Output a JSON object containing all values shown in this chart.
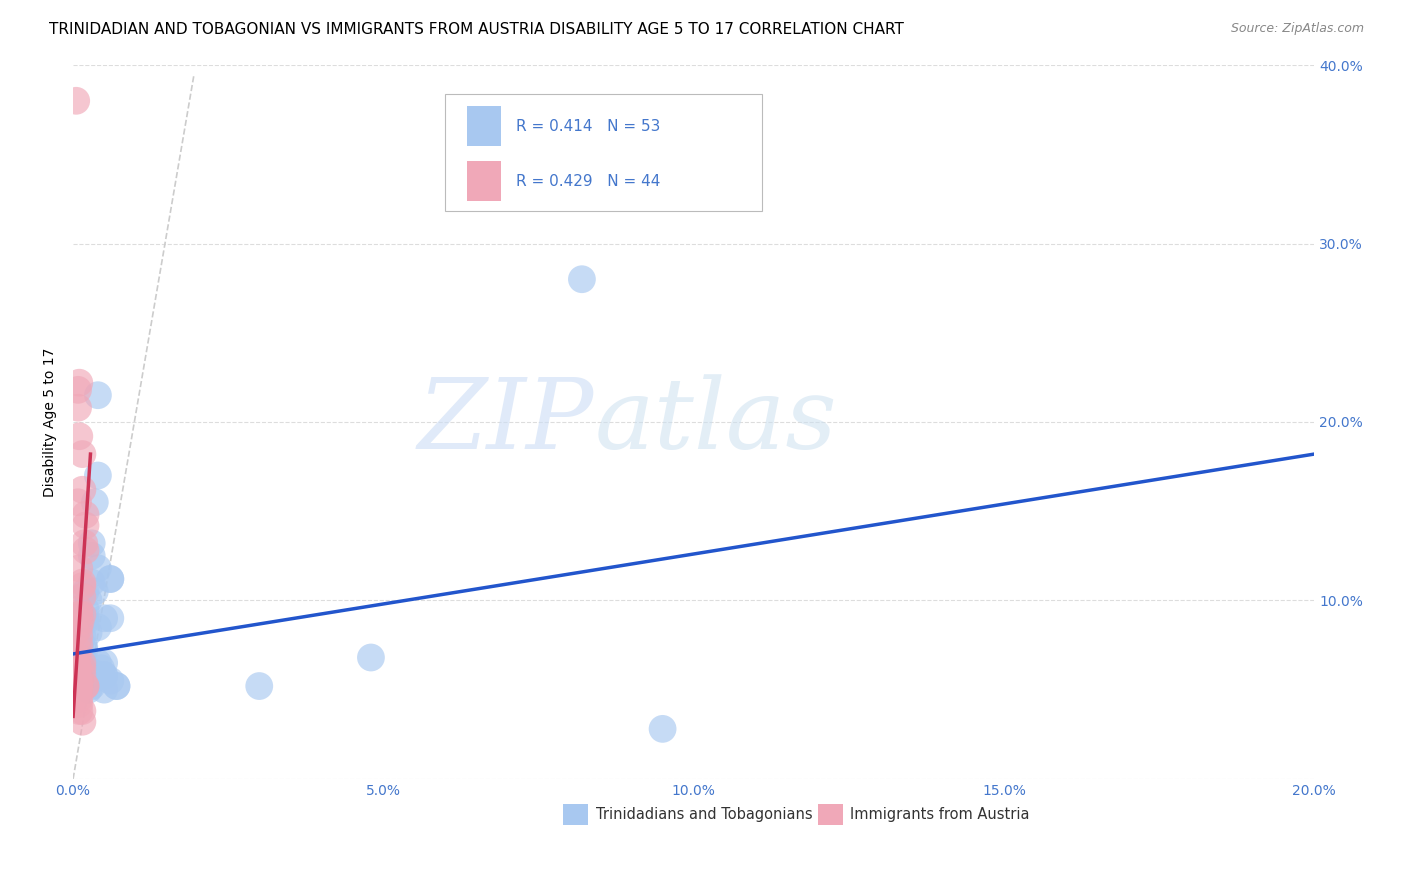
{
  "title": "TRINIDADIAN AND TOBAGONIAN VS IMMIGRANTS FROM AUSTRIA DISABILITY AGE 5 TO 17 CORRELATION CHART",
  "source": "Source: ZipAtlas.com",
  "ylabel": "Disability Age 5 to 17",
  "xlim": [
    0,
    0.2
  ],
  "ylim": [
    0,
    0.4
  ],
  "xticks": [
    0.0,
    0.05,
    0.1,
    0.15,
    0.2
  ],
  "xtick_labels": [
    "0.0%",
    "5.0%",
    "10.0%",
    "15.0%",
    "20.0%"
  ],
  "yticks": [
    0.0,
    0.1,
    0.2,
    0.3,
    0.4
  ],
  "ytick_labels_left": [
    "",
    "",
    "",
    "",
    ""
  ],
  "ytick_labels_right": [
    "",
    "10.0%",
    "20.0%",
    "30.0%",
    "40.0%"
  ],
  "legend_labels": [
    "Trinidadians and Tobagonians",
    "Immigrants from Austria"
  ],
  "blue_R": 0.414,
  "blue_N": 53,
  "pink_R": 0.429,
  "pink_N": 44,
  "blue_color": "#a8c8f0",
  "blue_line_color": "#2255cc",
  "pink_color": "#f0a8b8",
  "pink_line_color": "#cc3355",
  "scatter_alpha": 0.65,
  "scatter_size": 400,
  "blue_scatter_x": [
    0.0005,
    0.001,
    0.0008,
    0.0012,
    0.0015,
    0.0008,
    0.001,
    0.0015,
    0.0012,
    0.0018,
    0.002,
    0.0015,
    0.001,
    0.002,
    0.0018,
    0.002,
    0.0025,
    0.003,
    0.002,
    0.003,
    0.0035,
    0.003,
    0.004,
    0.0025,
    0.004,
    0.0035,
    0.001,
    0.0015,
    0.002,
    0.003,
    0.004,
    0.003,
    0.0045,
    0.0025,
    0.003,
    0.005,
    0.004,
    0.006,
    0.004,
    0.005,
    0.007,
    0.005,
    0.006,
    0.007,
    0.005,
    0.004,
    0.006,
    0.006,
    0.005,
    0.03,
    0.048,
    0.082,
    0.095
  ],
  "blue_scatter_y": [
    0.075,
    0.072,
    0.082,
    0.07,
    0.068,
    0.078,
    0.085,
    0.08,
    0.076,
    0.074,
    0.088,
    0.065,
    0.07,
    0.09,
    0.072,
    0.095,
    0.1,
    0.11,
    0.105,
    0.132,
    0.155,
    0.125,
    0.17,
    0.082,
    0.118,
    0.105,
    0.058,
    0.052,
    0.055,
    0.06,
    0.065,
    0.052,
    0.062,
    0.05,
    0.055,
    0.09,
    0.085,
    0.09,
    0.058,
    0.065,
    0.052,
    0.058,
    0.055,
    0.052,
    0.05,
    0.215,
    0.112,
    0.112,
    0.058,
    0.052,
    0.068,
    0.28,
    0.028
  ],
  "pink_scatter_x": [
    0.0005,
    0.0008,
    0.001,
    0.001,
    0.0012,
    0.0015,
    0.001,
    0.0015,
    0.0008,
    0.001,
    0.0015,
    0.001,
    0.0008,
    0.002,
    0.0015,
    0.002,
    0.0018,
    0.001,
    0.0008,
    0.0015,
    0.002,
    0.001,
    0.0015,
    0.0008,
    0.001,
    0.0015,
    0.002,
    0.0015,
    0.001,
    0.002,
    0.0015,
    0.001,
    0.0008,
    0.001,
    0.0015,
    0.001,
    0.0008,
    0.001,
    0.0015,
    0.0005,
    0.001,
    0.0008,
    0.0008,
    0.001
  ],
  "pink_scatter_y": [
    0.082,
    0.072,
    0.085,
    0.08,
    0.088,
    0.092,
    0.075,
    0.108,
    0.062,
    0.118,
    0.11,
    0.095,
    0.068,
    0.128,
    0.102,
    0.142,
    0.132,
    0.092,
    0.155,
    0.162,
    0.148,
    0.052,
    0.058,
    0.055,
    0.05,
    0.065,
    0.052,
    0.062,
    0.042,
    0.052,
    0.038,
    0.045,
    0.208,
    0.192,
    0.182,
    0.052,
    0.048,
    0.038,
    0.032,
    0.38,
    0.222,
    0.218,
    0.062,
    0.055
  ],
  "blue_line_x0": 0.0,
  "blue_line_x1": 0.2,
  "blue_line_y0": 0.07,
  "blue_line_y1": 0.182,
  "pink_line_x0": 0.0,
  "pink_line_x1": 0.0028,
  "pink_line_y0": 0.035,
  "pink_line_y1": 0.182,
  "dash_line_x0": 0.0,
  "dash_line_x1": 0.0195,
  "dash_line_y0": 0.0,
  "dash_line_y1": 0.395,
  "watermark_zip": "ZIP",
  "watermark_atlas": "atlas",
  "grid_color": "#dddddd",
  "background_color": "#ffffff",
  "title_fontsize": 11,
  "axis_label_fontsize": 10,
  "tick_fontsize": 10,
  "tick_color": "#4477cc",
  "legend_R_color": "#4477cc"
}
